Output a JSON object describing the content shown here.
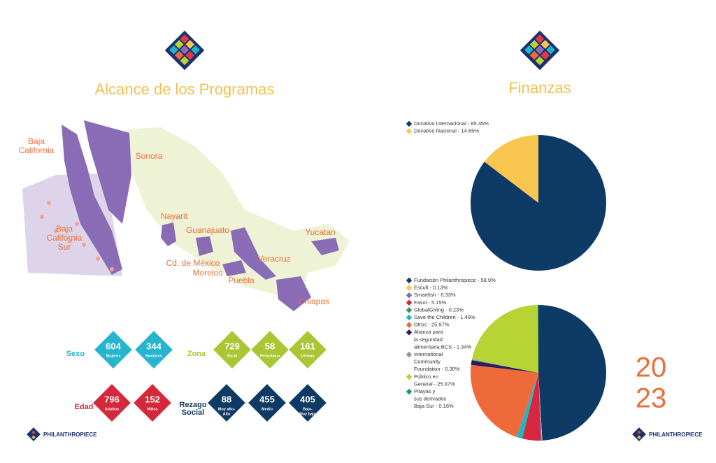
{
  "left": {
    "title": "Alcance de los Programas",
    "map_labels": [
      "Baja",
      "California",
      "Sonora",
      "Baja",
      "California",
      "Sur",
      "Nayarit",
      "Guanajuato",
      "Yucatan",
      "Veracruz",
      "Cd. de México",
      "Morelos",
      "Puebla",
      "Chiapas"
    ],
    "stats": [
      {
        "label": [
          "Sexo"
        ],
        "color": "#27b4cf",
        "items": [
          {
            "value": 604,
            "label": [
              "Mujeres"
            ]
          },
          {
            "value": 344,
            "label": [
              "Hombres"
            ]
          }
        ]
      },
      {
        "label": [
          "Zona"
        ],
        "color": "#a9c634",
        "items": [
          {
            "value": 729,
            "label": [
              "Rural"
            ]
          },
          {
            "value": 58,
            "label": [
              "Periurbano"
            ]
          },
          {
            "value": 161,
            "label": [
              "Urbano"
            ]
          }
        ]
      },
      {
        "label": [
          "Edad"
        ],
        "color": "#d5283a",
        "items": [
          {
            "value": 796,
            "label": [
              "Adultos"
            ]
          },
          {
            "value": 152,
            "label": [
              "Niños"
            ]
          }
        ]
      },
      {
        "label": [
          "Rezago",
          "Social"
        ],
        "color": "#0f3a63",
        "items": [
          {
            "value": 88,
            "label": [
              "Muy alto-",
              "Alto"
            ]
          },
          {
            "value": 455,
            "label": [
              "Medio"
            ]
          },
          {
            "value": 405,
            "label": [
              "Bajo-",
              "Muy bajo"
            ]
          }
        ]
      }
    ],
    "logo": "PHILANTHROPIECE"
  },
  "right": {
    "title": "Finanzas",
    "year": [
      "20",
      "23"
    ],
    "logo": "PHILANTHROPIECE"
  },
  "chart_data": [
    {
      "type": "pie",
      "categories": [
        "Donativo Internacional",
        "Donativo Nacional"
      ],
      "legend_labels": [
        [
          "Donativo Internacional - 85.35%"
        ],
        [
          "Donativo Nacional - 14.65%"
        ]
      ],
      "values": [
        85.35,
        14.65
      ],
      "colors": [
        "#0d3b66",
        "#f9c74f"
      ]
    },
    {
      "type": "pie",
      "categories": [
        "Fundación Philanthropiece",
        "Escufi",
        "Smartfish",
        "Fasol",
        "GlobalGiving",
        "Save the Children",
        "Otros",
        "Alianza para la seguridad alimentaria BCS",
        "International Community Foundation",
        "Público en General",
        "Pitayas y sus derivados Baja Sur"
      ],
      "legend_labels": [
        [
          "Fundación Philanthropiece - 58.9%"
        ],
        [
          "Escufi - 0.13%"
        ],
        [
          "Smartfish - 0.33%"
        ],
        [
          "Fasol - 5.15%"
        ],
        [
          "GlobalGiving - 0.23%"
        ],
        [
          "Save the Children - 1.49%"
        ],
        [
          "Otros - 25.97%"
        ],
        [
          "Alianza para",
          "la seguridad",
          "alimentaria BCS - 1.34%"
        ],
        [
          "International",
          "Community",
          "Foundation - 0.30%"
        ],
        [
          "Público en",
          "General - 25.97%"
        ],
        [
          "Pitayas y",
          "sus derivados",
          "Baja Sur - 0.16%"
        ]
      ],
      "values": [
        58.9,
        0.13,
        0.33,
        5.15,
        0.23,
        1.49,
        25.97,
        1.34,
        0.3,
        25.97,
        0.16
      ],
      "colors": [
        "#0d3b66",
        "#f9c74f",
        "#8a6bb5",
        "#d7263d",
        "#2a9d5c",
        "#1fb5c8",
        "#ee6a3a",
        "#2b1d5c",
        "#8a9aa0",
        "#b8d334",
        "#1a9a6a"
      ]
    }
  ]
}
